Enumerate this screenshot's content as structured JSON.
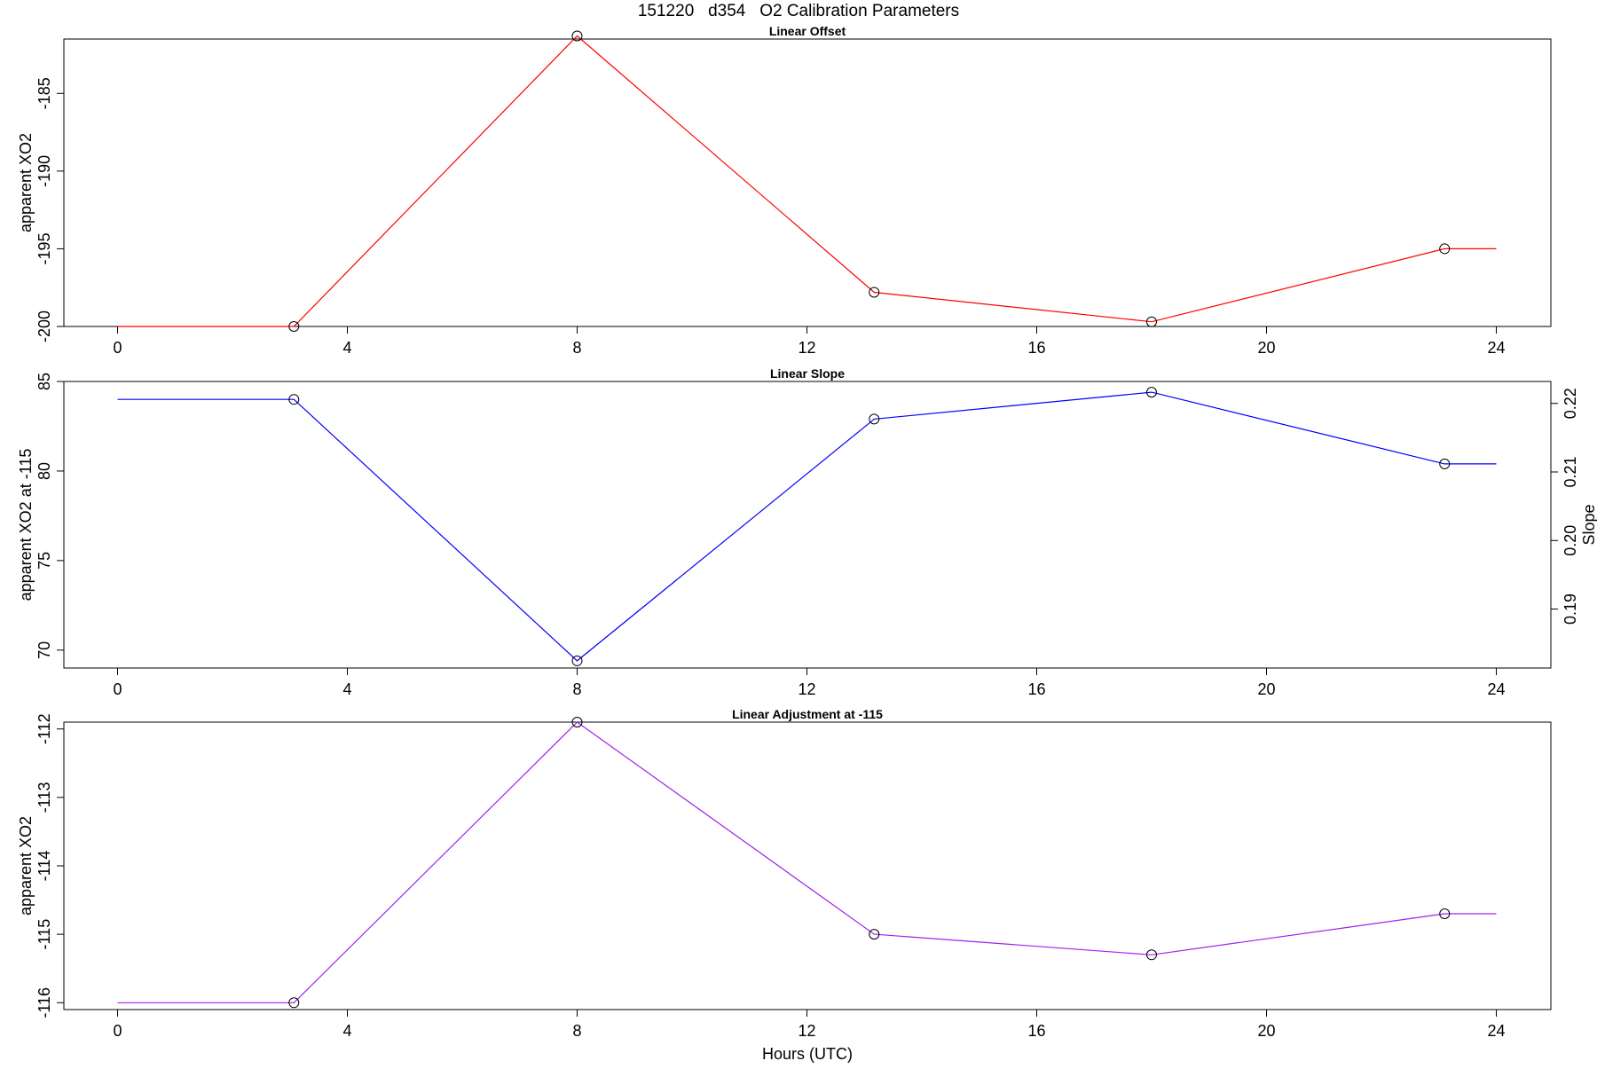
{
  "figure": {
    "title": "151220   d354   O2 Calibration Parameters",
    "xlabel": "Hours (UTC)"
  },
  "chart_data": [
    {
      "type": "line",
      "title": "Linear Offset",
      "xlabel": "",
      "ylabel": "apparent XO2",
      "xlim": [
        0,
        24
      ],
      "ylim": [
        -200,
        -181.5
      ],
      "xticks": [
        0,
        4,
        8,
        12,
        16,
        20,
        24
      ],
      "yticks": [
        -200,
        -195,
        -190,
        -185
      ],
      "color": "#ff0000",
      "points": [
        [
          3.07,
          -200
        ],
        [
          8.0,
          -181.3
        ],
        [
          13.17,
          -197.8
        ],
        [
          18.0,
          -199.7
        ],
        [
          23.1,
          -195.0
        ]
      ],
      "line": [
        [
          0,
          -200
        ],
        [
          3.07,
          -200
        ],
        [
          8.0,
          -181.3
        ],
        [
          13.17,
          -197.8
        ],
        [
          18.0,
          -199.7
        ],
        [
          23.1,
          -195.0
        ],
        [
          24,
          -195.0
        ]
      ]
    },
    {
      "type": "line",
      "title": "Linear Slope",
      "xlabel": "",
      "ylabel": "apparent XO2 at -115",
      "y2label": "Slope",
      "xlim": [
        0,
        24
      ],
      "ylim": [
        69,
        85
      ],
      "y2lim": [
        0.1814,
        0.2232
      ],
      "xticks": [
        0,
        4,
        8,
        12,
        16,
        20,
        24
      ],
      "yticks": [
        70,
        75,
        80,
        85
      ],
      "y2ticks": [
        0.19,
        0.2,
        0.21,
        0.22
      ],
      "color": "#0000ff",
      "points": [
        [
          3.07,
          84.0
        ],
        [
          8.0,
          69.4
        ],
        [
          13.17,
          82.9
        ],
        [
          18.0,
          84.4
        ],
        [
          23.1,
          80.4
        ]
      ],
      "line": [
        [
          0,
          84.0
        ],
        [
          3.07,
          84.0
        ],
        [
          8.0,
          69.4
        ],
        [
          13.17,
          82.9
        ],
        [
          18.0,
          84.4
        ],
        [
          23.1,
          80.4
        ],
        [
          24,
          80.4
        ]
      ]
    },
    {
      "type": "line",
      "title": "Linear Adjustment at -115",
      "xlabel": "Hours (UTC)",
      "ylabel": "apparent XO2",
      "xlim": [
        0,
        24
      ],
      "ylim": [
        -116.1,
        -111.9
      ],
      "xticks": [
        0,
        4,
        8,
        12,
        16,
        20,
        24
      ],
      "yticks": [
        -116,
        -115,
        -114,
        -113,
        -112
      ],
      "color": "#a020f0",
      "points": [
        [
          3.07,
          -116.0
        ],
        [
          8.0,
          -111.9
        ],
        [
          13.17,
          -115.0
        ],
        [
          18.0,
          -115.3
        ],
        [
          23.1,
          -114.7
        ]
      ],
      "line": [
        [
          0,
          -116.0
        ],
        [
          3.07,
          -116.0
        ],
        [
          8.0,
          -111.9
        ],
        [
          13.17,
          -115.0
        ],
        [
          18.0,
          -115.3
        ],
        [
          23.1,
          -114.7
        ],
        [
          24,
          -114.7
        ]
      ]
    }
  ]
}
